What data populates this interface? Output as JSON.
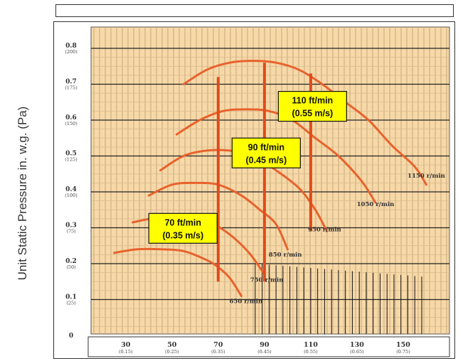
{
  "chart_data": {
    "type": "line",
    "title": "",
    "xlabel": "",
    "ylabel": "Unit Static Pressure in. w.g. (Pa)",
    "xlim": [
      15,
      170
    ],
    "ylim": [
      0,
      0.8
    ],
    "grid": true,
    "y_ticks": [
      {
        "value": 0.8,
        "label": "0.8",
        "sub": "(200)"
      },
      {
        "value": 0.7,
        "label": "0.7",
        "sub": "(175)"
      },
      {
        "value": 0.6,
        "label": "0.6",
        "sub": "(150)"
      },
      {
        "value": 0.5,
        "label": "0.5",
        "sub": "(125)"
      },
      {
        "value": 0.4,
        "label": "0.4",
        "sub": "(100)"
      },
      {
        "value": 0.3,
        "label": "0.3",
        "sub": "(75)"
      },
      {
        "value": 0.2,
        "label": "0.2",
        "sub": "(50)"
      },
      {
        "value": 0.1,
        "label": "0.1",
        "sub": "(25)"
      },
      {
        "value": 0,
        "label": "0",
        "sub": ""
      }
    ],
    "x_ticks": [
      {
        "value": 30,
        "label": "30",
        "sub": "(0.15)"
      },
      {
        "value": 50,
        "label": "50",
        "sub": "(0.25)"
      },
      {
        "value": 70,
        "label": "70",
        "sub": "(0.35)"
      },
      {
        "value": 90,
        "label": "90",
        "sub": "(0.45)"
      },
      {
        "value": 110,
        "label": "110",
        "sub": "(0.55)"
      },
      {
        "value": 130,
        "label": "130",
        "sub": "(0.65)"
      },
      {
        "value": 150,
        "label": "150",
        "sub": "(0.75)"
      }
    ],
    "series": [
      {
        "name": "650 r/min",
        "label_at": [
          82,
          0.09
        ],
        "points": [
          [
            25,
            0.23
          ],
          [
            35,
            0.24
          ],
          [
            45,
            0.24
          ],
          [
            55,
            0.235
          ],
          [
            65,
            0.21
          ],
          [
            70,
            0.19
          ],
          [
            75,
            0.16
          ],
          [
            80,
            0.11
          ]
        ]
      },
      {
        "name": "750 r/min",
        "label_at": [
          91,
          0.15
        ],
        "points": [
          [
            33,
            0.315
          ],
          [
            45,
            0.33
          ],
          [
            55,
            0.33
          ],
          [
            65,
            0.32
          ],
          [
            72,
            0.295
          ],
          [
            78,
            0.265
          ],
          [
            84,
            0.225
          ],
          [
            90,
            0.17
          ]
        ]
      },
      {
        "name": "850 r/min",
        "label_at": [
          99,
          0.22
        ],
        "points": [
          [
            40,
            0.39
          ],
          [
            50,
            0.42
          ],
          [
            60,
            0.425
          ],
          [
            70,
            0.42
          ],
          [
            80,
            0.39
          ],
          [
            88,
            0.35
          ],
          [
            95,
            0.31
          ],
          [
            100,
            0.24
          ]
        ]
      },
      {
        "name": "950 r/min",
        "label_at": [
          116,
          0.29
        ],
        "points": [
          [
            45,
            0.46
          ],
          [
            55,
            0.5
          ],
          [
            65,
            0.515
          ],
          [
            75,
            0.515
          ],
          [
            85,
            0.5
          ],
          [
            95,
            0.46
          ],
          [
            105,
            0.41
          ],
          [
            112,
            0.35
          ],
          [
            117,
            0.29
          ]
        ]
      },
      {
        "name": "1050 r/min",
        "label_at": [
          138,
          0.36
        ],
        "points": [
          [
            52,
            0.56
          ],
          [
            62,
            0.6
          ],
          [
            72,
            0.625
          ],
          [
            82,
            0.63
          ],
          [
            92,
            0.625
          ],
          [
            102,
            0.6
          ],
          [
            112,
            0.55
          ],
          [
            122,
            0.5
          ],
          [
            132,
            0.43
          ],
          [
            138,
            0.37
          ]
        ]
      },
      {
        "name": "1150 r/min",
        "label_at": [
          160,
          0.44
        ],
        "points": [
          [
            55,
            0.7
          ],
          [
            65,
            0.74
          ],
          [
            75,
            0.76
          ],
          [
            85,
            0.765
          ],
          [
            95,
            0.76
          ],
          [
            105,
            0.74
          ],
          [
            115,
            0.7
          ],
          [
            125,
            0.65
          ],
          [
            135,
            0.6
          ],
          [
            145,
            0.53
          ],
          [
            155,
            0.47
          ],
          [
            160,
            0.42
          ]
        ]
      }
    ],
    "velocity_lines": [
      {
        "x": 70,
        "y_from": 0.15,
        "y_to": 0.72,
        "label": "70 ft/min",
        "sub": "(0.35 m/s)"
      },
      {
        "x": 90,
        "y_from": 0.15,
        "y_to": 0.76,
        "label": "90 ft/min",
        "sub": "(0.45 m/s)"
      },
      {
        "x": 110,
        "y_from": 0.29,
        "y_to": 0.73,
        "label": "110 ft/min",
        "sub": "(0.55 m/s)"
      }
    ],
    "curve_color": "#e8622c",
    "velocity_color": "#e04b1c",
    "plot_bg": "#f7d9a8",
    "label_box_bg": "#ffff00"
  }
}
